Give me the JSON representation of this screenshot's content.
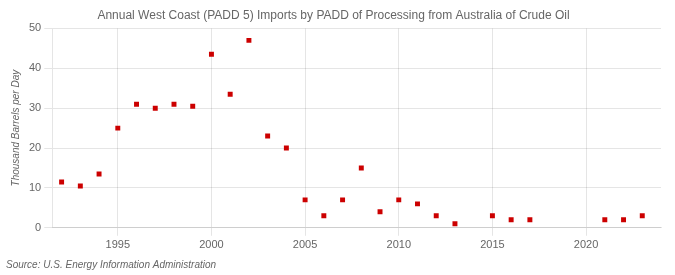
{
  "chart_data": {
    "type": "scatter",
    "title": "Annual West Coast (PADD 5) Imports by PADD of Processing from Australia of Crude Oil",
    "y_label": "Thousand Barrels per Day",
    "annotations": [
      "Source: U.S. Energy Information Administration"
    ],
    "color": "#cc0000",
    "marker": "square",
    "grid": true,
    "xlim": [
      1991.5,
      2024
    ],
    "ylim": [
      0,
      50
    ],
    "xticks": [
      1995,
      2000,
      2005,
      2010,
      2015,
      2020
    ],
    "yticks": [
      0,
      10,
      20,
      30,
      40,
      50
    ],
    "x": [
      1992,
      1993,
      1994,
      1995,
      1996,
      1997,
      1998,
      1999,
      2000,
      2001,
      2002,
      2003,
      2004,
      2005,
      2006,
      2007,
      2008,
      2009,
      2010,
      2011,
      2012,
      2013,
      2015,
      2016,
      2017,
      2021,
      2022,
      2023
    ],
    "values": [
      11.5,
      10.5,
      13.5,
      25.0,
      31.0,
      30.0,
      31.0,
      30.5,
      43.5,
      33.5,
      47.0,
      23.0,
      20.0,
      7.0,
      3.0,
      7.0,
      15.0,
      4.0,
      7.0,
      6.0,
      3.0,
      1.0,
      3.0,
      2.0,
      2.0,
      2.0,
      2.0,
      3.0
    ]
  }
}
